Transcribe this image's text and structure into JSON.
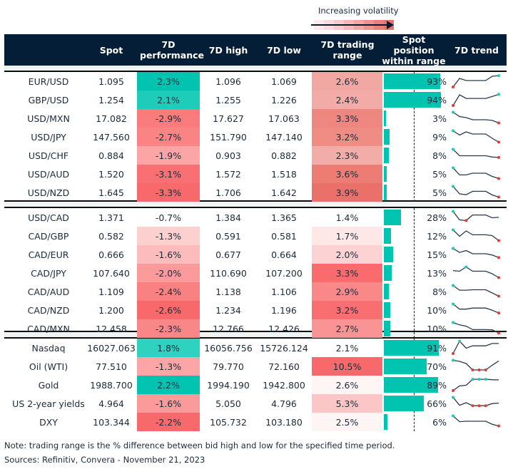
{
  "legend": {
    "label": "Increasing volatility",
    "gradient": [
      "#fdeaea",
      "#fbdcdc",
      "#f9cccc",
      "#f6b9b9",
      "#f3a6a4",
      "#f09390",
      "#ec7f7a",
      "#ea716c"
    ]
  },
  "colors": {
    "header_bg": "#041e37",
    "positive": "#00c4b0",
    "negative_strong": "#f8696b",
    "bar": "#00c4b0",
    "spark_line": "#2b3a4a",
    "spark_high": "#1ccab8",
    "spark_low": "#e03c31"
  },
  "columns": [
    "",
    "Spot",
    "7D performance",
    "7D high",
    "7D low",
    "7D trading range",
    "Spot position within range",
    "7D trend"
  ],
  "sections": [
    {
      "rows": [
        {
          "name": "EUR/USD",
          "spot": "1.095",
          "perf": "2.3%",
          "perf_color": "#00c4b0",
          "high": "1.096",
          "low": "1.069",
          "range": "2.6%",
          "range_color": "#f1a8a3",
          "position": 93,
          "pos_label": "93%",
          "trend": [
            1,
            5,
            4,
            4,
            4,
            4,
            6,
            6.3
          ],
          "hi": [
            7
          ],
          "lo": [
            0
          ]
        },
        {
          "name": "GBP/USD",
          "spot": "1.254",
          "perf": "2.1%",
          "perf_color": "#1dcdb9",
          "high": "1.255",
          "low": "1.226",
          "range": "2.4%",
          "range_color": "#f2aba6",
          "position": 94,
          "pos_label": "94%",
          "trend": [
            1,
            6,
            4.3,
            4.3,
            4.3,
            4.3,
            5.2,
            6.2
          ],
          "hi": [
            7
          ],
          "lo": [
            0
          ]
        },
        {
          "name": "USD/MXN",
          "spot": "17.082",
          "perf": "-2.9%",
          "perf_color": "#f97b7b",
          "high": "17.627",
          "low": "17.063",
          "range": "3.3%",
          "range_color": "#ee877f",
          "position": 3,
          "pos_label": "3%",
          "trend": [
            6.5,
            4.5,
            4,
            3,
            3,
            3,
            2.7,
            1.5
          ],
          "hi": [
            0
          ],
          "lo": [
            7
          ]
        },
        {
          "name": "USD/JPY",
          "spot": "147.560",
          "perf": "-2.7%",
          "perf_color": "#fa8484",
          "high": "151.790",
          "low": "147.140",
          "range": "3.2%",
          "range_color": "#ef8c84",
          "position": 9,
          "pos_label": "9%",
          "trend": [
            6.5,
            4.5,
            6,
            5,
            5,
            5,
            3,
            1.2
          ],
          "hi": [
            0
          ],
          "lo": [
            7
          ]
        },
        {
          "name": "USD/CHF",
          "spot": "0.884",
          "perf": "-1.9%",
          "perf_color": "#fba5a6",
          "high": "0.903",
          "low": "0.882",
          "range": "2.3%",
          "range_color": "#f2ada8",
          "position": 8,
          "pos_label": "8%",
          "trend": [
            6.5,
            3.5,
            3.5,
            3.5,
            3.5,
            3.5,
            2.9,
            2.7
          ],
          "hi": [
            0
          ],
          "lo": [
            7
          ]
        },
        {
          "name": "USD/AUD",
          "spot": "1.520",
          "perf": "-3.1%",
          "perf_color": "#f87073",
          "high": "1.572",
          "low": "1.518",
          "range": "3.6%",
          "range_color": "#ec7c74",
          "position": 5,
          "pos_label": "5%",
          "trend": [
            6.5,
            3.2,
            3.2,
            4,
            4,
            4,
            2.5,
            1.5
          ],
          "hi": [
            0
          ],
          "lo": [
            7
          ]
        },
        {
          "name": "USD/NZD",
          "spot": "1.645",
          "perf": "-3.3%",
          "perf_color": "#f8696b",
          "high": "1.706",
          "low": "1.642",
          "range": "3.9%",
          "range_color": "#ea716a",
          "position": 5,
          "pos_label": "5%",
          "trend": [
            6.5,
            3,
            2.6,
            4.2,
            4.2,
            4.2,
            2.5,
            1.5
          ],
          "hi": [
            0
          ],
          "lo": [
            7
          ]
        }
      ]
    },
    {
      "rows": [
        {
          "name": "USD/CAD",
          "spot": "1.371",
          "perf": "-0.7%",
          "perf_color": "#ffffff",
          "high": "1.384",
          "low": "1.365",
          "range": "1.4%",
          "range_color": "#ffffff",
          "position": 28,
          "pos_label": "28%",
          "trend": [
            6.5,
            2.5,
            2.2,
            4.8,
            4.8,
            4.8,
            3.5,
            3.7
          ],
          "hi": [
            0
          ],
          "lo": [
            2
          ]
        },
        {
          "name": "CAD/GBP",
          "spot": "0.582",
          "perf": "-1.3%",
          "perf_color": "#fdd0d0",
          "high": "0.591",
          "low": "0.581",
          "range": "1.7%",
          "range_color": "#fde7e7",
          "position": 12,
          "pos_label": "12%",
          "trend": [
            6.5,
            3.5,
            6,
            4.2,
            4.2,
            4.2,
            3.8,
            1.5
          ],
          "hi": [
            0
          ],
          "lo": [
            7
          ]
        },
        {
          "name": "CAD/EUR",
          "spot": "0.666",
          "perf": "-1.6%",
          "perf_color": "#fcbcbc",
          "high": "0.677",
          "low": "0.664",
          "range": "2.0%",
          "range_color": "#fcd2d3",
          "position": 15,
          "pos_label": "15%",
          "trend": [
            6.5,
            4.6,
            5.5,
            4,
            4,
            4,
            3.4,
            2.2
          ],
          "hi": [
            0
          ],
          "lo": [
            7
          ]
        },
        {
          "name": "CAD/JPY",
          "spot": "107.640",
          "perf": "-2.0%",
          "perf_color": "#fb9a9b",
          "high": "110.690",
          "low": "107.200",
          "range": "3.3%",
          "range_color": "#f96b6d",
          "position": 13,
          "pos_label": "13%",
          "trend": [
            4.8,
            4.5,
            6.5,
            4.5,
            4.5,
            4.5,
            3.3,
            1.5
          ],
          "hi": [
            2
          ],
          "lo": [
            7
          ]
        },
        {
          "name": "CAD/AUD",
          "spot": "1.109",
          "perf": "-2.4%",
          "perf_color": "#f98182",
          "high": "1.138",
          "low": "1.106",
          "range": "2.9%",
          "range_color": "#fa8889",
          "position": 8,
          "pos_label": "8%",
          "trend": [
            6.5,
            4.3,
            4.3,
            4.5,
            4.5,
            4.5,
            3,
            1.5
          ],
          "hi": [
            0
          ],
          "lo": [
            7
          ]
        },
        {
          "name": "CAD/NZD",
          "spot": "1.200",
          "perf": "-2.6%",
          "perf_color": "#f8696b",
          "high": "1.234",
          "low": "1.196",
          "range": "3.2%",
          "range_color": "#f96e70",
          "position": 10,
          "pos_label": "10%",
          "trend": [
            6.5,
            4.1,
            4.1,
            4.6,
            4.6,
            4.6,
            3.6,
            2.3
          ],
          "hi": [
            0
          ],
          "lo": [
            7
          ]
        },
        {
          "name": "CAD/MXN",
          "spot": "12.458",
          "perf": "-2.3%",
          "perf_color": "#f98788",
          "high": "12.766",
          "low": "12.426",
          "range": "2.7%",
          "range_color": "#fa9494",
          "position": 10,
          "pos_label": "10%",
          "trend": [
            6.5,
            5.4,
            4.8,
            3.2,
            3.2,
            3.2,
            3.1,
            1.6
          ],
          "hi": [
            0
          ],
          "lo": [
            7
          ]
        }
      ]
    },
    {
      "rows": [
        {
          "name": "Nasdaq",
          "spot": "16027.063",
          "perf": "1.8%",
          "perf_color": "#2ed3c0",
          "high": "16056.756",
          "low": "15726.124",
          "range": "2.1%",
          "range_color": "#ffffff",
          "position": 91,
          "pos_label": "91%",
          "trend": [
            1,
            6.8,
            3.5,
            4.6,
            4.6,
            4.6,
            5.7,
            5.7
          ],
          "hi": [
            1
          ],
          "lo": [
            0
          ]
        },
        {
          "name": "Oil (WTI)",
          "spot": "77.510",
          "perf": "-1.3%",
          "perf_color": "#fba5a6",
          "high": "79.770",
          "low": "72.160",
          "range": "10.5%",
          "range_color": "#f8696b",
          "position": 70,
          "pos_label": "70%",
          "trend": [
            6.5,
            6,
            5,
            2,
            2,
            2,
            4.2,
            6.2
          ],
          "hi": [
            0
          ],
          "lo": [
            3,
            4,
            5
          ]
        },
        {
          "name": "Gold",
          "spot": "1988.700",
          "perf": "2.2%",
          "perf_color": "#00c4b0",
          "high": "1994.190",
          "low": "1942.800",
          "range": "2.6%",
          "range_color": "#fff5f5",
          "position": 89,
          "pos_label": "89%",
          "trend": [
            1,
            3.2,
            3.5,
            6.3,
            6.3,
            6.3,
            6.1,
            6
          ],
          "hi": [
            3,
            4,
            5
          ],
          "lo": [
            0
          ]
        },
        {
          "name": "US 2-year yields",
          "spot": "4.964",
          "perf": "-1.6%",
          "perf_color": "#fa9a9b",
          "high": "5.050",
          "low": "4.796",
          "range": "5.3%",
          "range_color": "#fcc6c6",
          "position": 66,
          "pos_label": "66%",
          "trend": [
            6.5,
            2.8,
            4,
            2.6,
            2.6,
            2.6,
            3.6,
            3.8
          ],
          "hi": [
            0
          ],
          "lo": [
            3,
            4,
            5
          ]
        },
        {
          "name": "DXY",
          "spot": "103.344",
          "perf": "-2.2%",
          "perf_color": "#f8696b",
          "high": "105.732",
          "low": "103.180",
          "range": "2.5%",
          "range_color": "#fff5f5",
          "position": 6,
          "pos_label": "6%",
          "trend": [
            6.5,
            3.8,
            4,
            4,
            4,
            4,
            2.6,
            1.8
          ],
          "hi": [
            0
          ],
          "lo": [
            7
          ]
        }
      ]
    }
  ],
  "footer": {
    "note": "Note: trading range is the % difference between bid high and low for the specified time period.",
    "sources": "Sources: Refinitiv, Convera - November 21, 2023"
  }
}
